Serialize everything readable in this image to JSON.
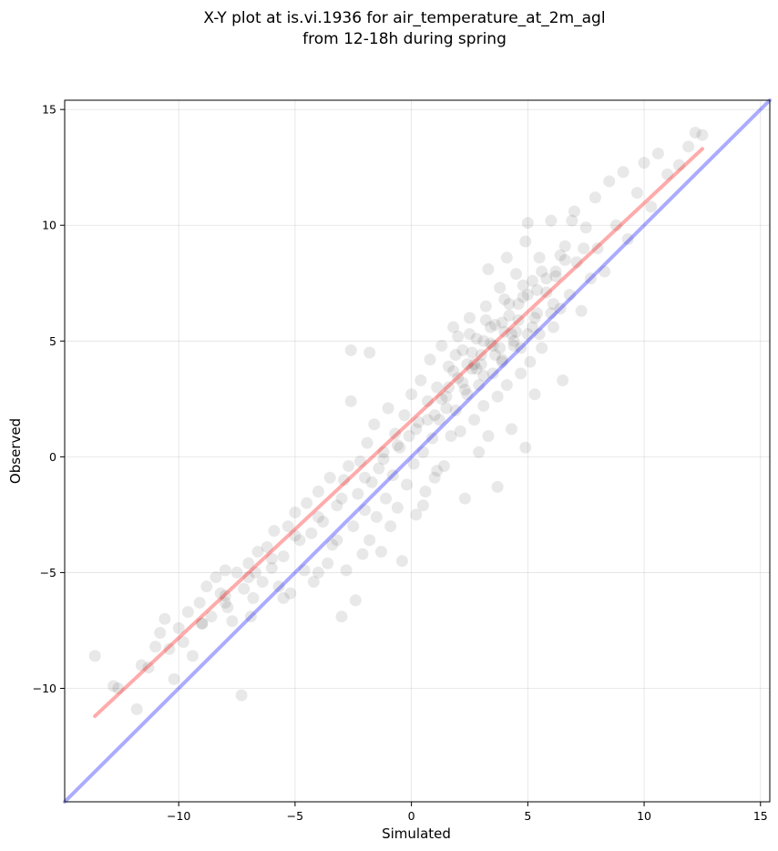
{
  "chart_data": {
    "type": "scatter",
    "title_lines": [
      "X-Y plot at is.vi.1936 for air_temperature_at_2m_agl",
      "from 12-18h during spring"
    ],
    "xlabel": "Simulated",
    "ylabel": "Observed",
    "xlim": [
      -14.9,
      15.4
    ],
    "ylim": [
      -14.9,
      15.4
    ],
    "xticks": [
      -10,
      -5,
      0,
      5,
      10,
      15
    ],
    "yticks": [
      -10,
      -5,
      0,
      5,
      10,
      15
    ],
    "grid": true,
    "point_color": "#000000",
    "point_alpha": 0.09,
    "reference_lines": [
      {
        "kind": "one-to-one",
        "color": "#0000ff",
        "x": [
          -14.9,
          15.4
        ],
        "y": [
          -14.9,
          15.4
        ]
      },
      {
        "kind": "regression-fit",
        "color": "#ff0000",
        "x": [
          -13.6,
          12.5
        ],
        "y": [
          -11.2,
          13.3
        ]
      }
    ],
    "points": [
      [
        -13.6,
        -8.6
      ],
      [
        -12.8,
        -9.9
      ],
      [
        -12.6,
        -10.0
      ],
      [
        -11.8,
        -10.9
      ],
      [
        -11.6,
        -9.0
      ],
      [
        -11.3,
        -9.1
      ],
      [
        -11.0,
        -8.2
      ],
      [
        -10.8,
        -7.6
      ],
      [
        -10.6,
        -7.0
      ],
      [
        -10.4,
        -8.3
      ],
      [
        -10.2,
        -9.6
      ],
      [
        -10.0,
        -7.4
      ],
      [
        -9.8,
        -8.0
      ],
      [
        -9.6,
        -6.7
      ],
      [
        -9.4,
        -8.6
      ],
      [
        -9.1,
        -6.3
      ],
      [
        -9.0,
        -7.2
      ],
      [
        -8.8,
        -5.6
      ],
      [
        -8.6,
        -6.9
      ],
      [
        -8.4,
        -5.2
      ],
      [
        -8.2,
        -5.9
      ],
      [
        -8.0,
        -4.9
      ],
      [
        -7.9,
        -6.5
      ],
      [
        -7.7,
        -7.1
      ],
      [
        -7.5,
        -5.0
      ],
      [
        -7.3,
        -10.3
      ],
      [
        -7.2,
        -5.7
      ],
      [
        -7.0,
        -4.6
      ],
      [
        -6.9,
        -6.9
      ],
      [
        -6.8,
        -6.1
      ],
      [
        -6.6,
        -4.1
      ],
      [
        -6.4,
        -5.4
      ],
      [
        -6.2,
        -3.9
      ],
      [
        -6.0,
        -4.8
      ],
      [
        -5.9,
        -3.2
      ],
      [
        -5.7,
        -5.6
      ],
      [
        -5.5,
        -4.3
      ],
      [
        -5.3,
        -3.0
      ],
      [
        -5.2,
        -5.9
      ],
      [
        -5.0,
        -2.4
      ],
      [
        -4.8,
        -3.6
      ],
      [
        -4.6,
        -4.9
      ],
      [
        -4.5,
        -2.0
      ],
      [
        -4.3,
        -3.3
      ],
      [
        -4.2,
        -5.4
      ],
      [
        -4.0,
        -1.5
      ],
      [
        -3.8,
        -2.8
      ],
      [
        -3.6,
        -4.6
      ],
      [
        -3.5,
        -0.9
      ],
      [
        -3.4,
        -3.8
      ],
      [
        -3.2,
        -2.1
      ],
      [
        -3.0,
        -6.9
      ],
      [
        -2.9,
        -1.0
      ],
      [
        -2.8,
        -4.9
      ],
      [
        -2.7,
        -0.4
      ],
      [
        -2.6,
        2.4
      ],
      [
        -2.5,
        -3.0
      ],
      [
        -2.4,
        -6.2
      ],
      [
        -2.3,
        -1.6
      ],
      [
        -2.2,
        -0.2
      ],
      [
        -2.1,
        -4.2
      ],
      [
        -2.0,
        -2.3
      ],
      [
        -1.9,
        0.6
      ],
      [
        -1.8,
        -3.6
      ],
      [
        -1.7,
        -1.1
      ],
      [
        -1.6,
        1.4
      ],
      [
        -1.5,
        -2.6
      ],
      [
        -1.4,
        -0.5
      ],
      [
        -1.3,
        -4.1
      ],
      [
        -1.2,
        0.2
      ],
      [
        -1.1,
        -1.8
      ],
      [
        -1.0,
        2.1
      ],
      [
        -0.9,
        -3.0
      ],
      [
        -0.8,
        -0.8
      ],
      [
        -0.7,
        1.0
      ],
      [
        -0.6,
        -2.2
      ],
      [
        -0.5,
        0.4
      ],
      [
        -0.4,
        -4.5
      ],
      [
        -0.3,
        1.8
      ],
      [
        -0.2,
        -1.2
      ],
      [
        -0.1,
        0.9
      ],
      [
        0.0,
        2.7
      ],
      [
        0.1,
        -0.3
      ],
      [
        0.2,
        -2.5
      ],
      [
        0.3,
        1.5
      ],
      [
        0.4,
        3.3
      ],
      [
        0.5,
        0.2
      ],
      [
        0.6,
        -1.5
      ],
      [
        0.7,
        2.4
      ],
      [
        0.8,
        4.2
      ],
      [
        0.9,
        0.8
      ],
      [
        1.0,
        -0.9
      ],
      [
        1.1,
        3.0
      ],
      [
        1.2,
        1.6
      ],
      [
        1.3,
        4.8
      ],
      [
        1.4,
        -0.4
      ],
      [
        1.5,
        2.6
      ],
      [
        1.6,
        3.9
      ],
      [
        1.7,
        0.9
      ],
      [
        1.8,
        5.6
      ],
      [
        1.9,
        2.0
      ],
      [
        2.0,
        3.4
      ],
      [
        2.1,
        1.1
      ],
      [
        2.2,
        4.6
      ],
      [
        2.3,
        -1.8
      ],
      [
        2.4,
        2.7
      ],
      [
        2.5,
        6.0
      ],
      [
        2.6,
        3.8
      ],
      [
        2.7,
        1.6
      ],
      [
        2.8,
        5.1
      ],
      [
        2.9,
        3.1
      ],
      [
        3.0,
        4.4
      ],
      [
        3.1,
        2.2
      ],
      [
        3.2,
        6.5
      ],
      [
        3.3,
        0.9
      ],
      [
        3.4,
        4.9
      ],
      [
        3.5,
        3.6
      ],
      [
        3.6,
        5.7
      ],
      [
        3.7,
        2.6
      ],
      [
        3.8,
        7.3
      ],
      [
        3.9,
        4.2
      ],
      [
        4.0,
        5.4
      ],
      [
        4.1,
        3.1
      ],
      [
        4.2,
        6.6
      ],
      [
        4.3,
        1.2
      ],
      [
        4.4,
        4.8
      ],
      [
        4.5,
        7.9
      ],
      [
        4.6,
        5.9
      ],
      [
        4.7,
        3.6
      ],
      [
        4.8,
        6.9
      ],
      [
        4.9,
        9.3
      ],
      [
        5.0,
        5.3
      ],
      [
        5.1,
        4.1
      ],
      [
        5.2,
        7.6
      ],
      [
        5.3,
        2.7
      ],
      [
        5.4,
        6.2
      ],
      [
        5.5,
        8.6
      ],
      [
        5.6,
        4.7
      ],
      [
        5.8,
        7.1
      ],
      [
        6.0,
        10.2
      ],
      [
        6.1,
        5.6
      ],
      [
        6.2,
        8.0
      ],
      [
        6.4,
        6.4
      ],
      [
        6.5,
        3.3
      ],
      [
        6.6,
        9.1
      ],
      [
        6.8,
        7.0
      ],
      [
        7.0,
        10.6
      ],
      [
        7.1,
        8.4
      ],
      [
        7.3,
        6.3
      ],
      [
        7.5,
        9.9
      ],
      [
        7.7,
        7.7
      ],
      [
        7.9,
        11.2
      ],
      [
        8.0,
        9.0
      ],
      [
        8.3,
        8.0
      ],
      [
        8.5,
        11.9
      ],
      [
        8.8,
        10.0
      ],
      [
        9.1,
        12.3
      ],
      [
        9.3,
        9.4
      ],
      [
        9.7,
        11.4
      ],
      [
        10.0,
        12.7
      ],
      [
        10.3,
        10.8
      ],
      [
        10.6,
        13.1
      ],
      [
        11.0,
        12.2
      ],
      [
        11.5,
        12.6
      ],
      [
        11.9,
        13.4
      ],
      [
        12.2,
        14.0
      ],
      [
        12.5,
        13.9
      ],
      [
        0.5,
        -2.1
      ],
      [
        1.1,
        -0.6
      ],
      [
        2.9,
        0.2
      ],
      [
        3.7,
        -1.3
      ],
      [
        4.9,
        0.4
      ],
      [
        -8.0,
        -6.3
      ],
      [
        -6.7,
        -5.0
      ],
      [
        -5.5,
        -6.1
      ],
      [
        -4.0,
        -5.0
      ],
      [
        -3.2,
        -3.6
      ],
      [
        1.9,
        4.4
      ],
      [
        -1.8,
        4.5
      ],
      [
        -2.6,
        4.6
      ],
      [
        3.3,
        8.1
      ],
      [
        4.1,
        8.6
      ],
      [
        2.0,
        5.2
      ],
      [
        5.0,
        10.1
      ],
      [
        6.9,
        10.2
      ],
      [
        1.6,
        3.0
      ],
      [
        2.4,
        4.0
      ],
      [
        3.1,
        5.0
      ],
      [
        3.9,
        5.8
      ],
      [
        4.6,
        6.6
      ],
      [
        5.4,
        7.2
      ],
      [
        6.2,
        7.8
      ],
      [
        1.3,
        2.5
      ],
      [
        2.2,
        3.2
      ],
      [
        3.0,
        4.0
      ],
      [
        3.8,
        4.7
      ],
      [
        4.5,
        5.4
      ],
      [
        5.3,
        6.0
      ],
      [
        6.1,
        6.6
      ],
      [
        0.7,
        1.6
      ],
      [
        1.5,
        2.1
      ],
      [
        2.3,
        2.9
      ],
      [
        3.1,
        3.5
      ],
      [
        3.9,
        4.1
      ],
      [
        4.7,
        4.7
      ],
      [
        5.5,
        5.3
      ],
      [
        -0.6,
        0.5
      ],
      [
        0.2,
        1.2
      ],
      [
        1.0,
        1.8
      ],
      [
        -2.0,
        -0.9
      ],
      [
        -1.2,
        -0.1
      ],
      [
        -3.0,
        -1.8
      ],
      [
        -4.0,
        -2.6
      ],
      [
        -5.0,
        -3.4
      ],
      [
        -6.0,
        -4.4
      ],
      [
        -7.0,
        -5.2
      ],
      [
        -8.0,
        -6.0
      ],
      [
        -9.0,
        -7.2
      ],
      [
        2.6,
        4.5
      ],
      [
        3.4,
        5.6
      ],
      [
        4.2,
        6.1
      ],
      [
        5.0,
        7.0
      ],
      [
        5.8,
        7.7
      ],
      [
        6.6,
        8.5
      ],
      [
        7.4,
        9.0
      ],
      [
        2.8,
        3.8
      ],
      [
        3.6,
        4.4
      ],
      [
        4.4,
        5.0
      ],
      [
        5.2,
        5.6
      ],
      [
        6.0,
        6.2
      ],
      [
        1.8,
        3.7
      ],
      [
        2.5,
        5.3
      ],
      [
        3.2,
        5.9
      ],
      [
        4.0,
        6.8
      ],
      [
        4.8,
        7.4
      ],
      [
        5.6,
        8.0
      ],
      [
        6.4,
        8.7
      ],
      [
        3.5,
        4.8
      ],
      [
        4.3,
        5.3
      ],
      [
        2.7,
        4.0
      ]
    ]
  }
}
